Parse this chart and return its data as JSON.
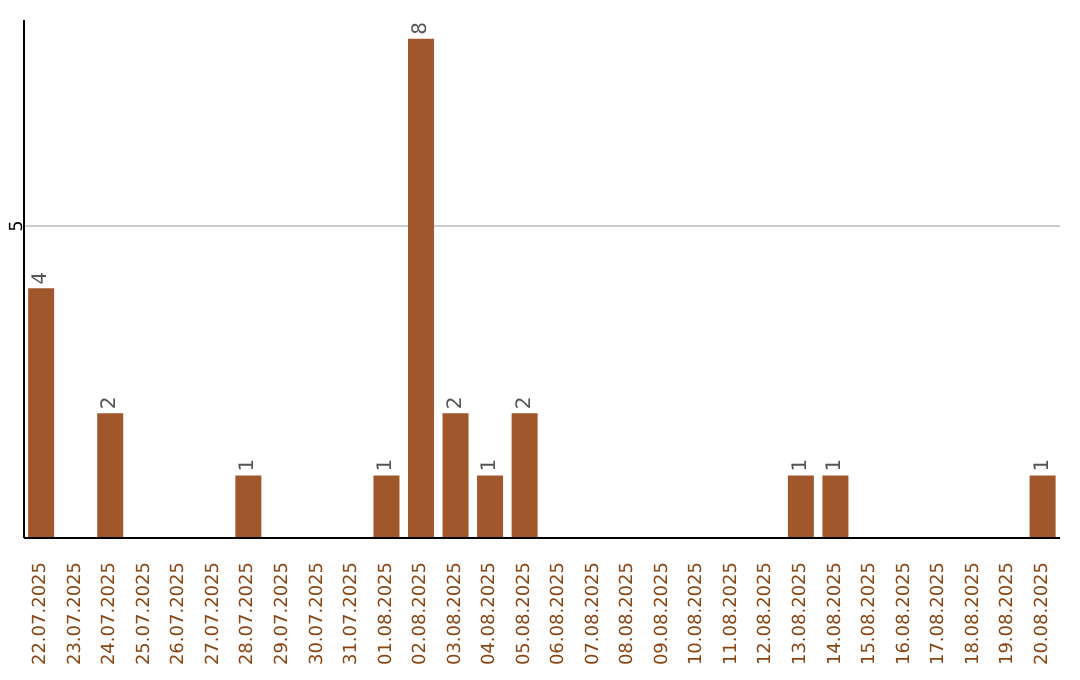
{
  "chart_data": {
    "type": "bar",
    "categories": [
      "22.07.2025",
      "23.07.2025",
      "24.07.2025",
      "25.07.2025",
      "26.07.2025",
      "27.07.2025",
      "28.07.2025",
      "29.07.2025",
      "30.07.2025",
      "31.07.2025",
      "01.08.2025",
      "02.08.2025",
      "03.08.2025",
      "04.08.2025",
      "05.08.2025",
      "06.08.2025",
      "07.08.2025",
      "08.08.2025",
      "09.08.2025",
      "10.08.2025",
      "11.08.2025",
      "12.08.2025",
      "13.08.2025",
      "14.08.2025",
      "15.08.2025",
      "16.08.2025",
      "17.08.2025",
      "18.08.2025",
      "19.08.2025",
      "20.08.2025"
    ],
    "values": [
      4,
      0,
      2,
      0,
      0,
      0,
      1,
      0,
      0,
      0,
      1,
      8,
      2,
      1,
      2,
      0,
      0,
      0,
      0,
      0,
      0,
      0,
      1,
      1,
      0,
      0,
      0,
      0,
      0,
      1
    ],
    "value_labels": [
      "4",
      null,
      "2",
      null,
      null,
      null,
      "1",
      null,
      null,
      null,
      "1",
      "8",
      "2",
      "1",
      "2",
      null,
      null,
      null,
      null,
      null,
      null,
      null,
      "1",
      "1",
      null,
      null,
      null,
      null,
      null,
      "1"
    ],
    "color": "#a0572b",
    "ylim": [
      0,
      8.3
    ],
    "yticks": [
      5
    ],
    "grid": "y"
  }
}
